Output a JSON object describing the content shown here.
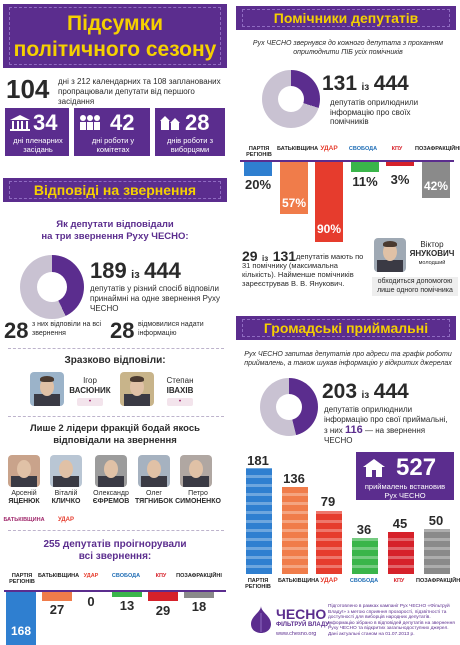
{
  "left": {
    "title_line1": "Підсумки",
    "title_line2": "політичного сезону",
    "days_number": "104",
    "days_text": "дні з 212 календарних та 108 запланованих пропрацювали депутати від першого засідання",
    "stat_plenary_num": "34",
    "stat_plenary_label": "дні пленарних засідань",
    "stat_committee_num": "42",
    "stat_committee_label": "дні роботи у комітетах",
    "stat_voters_num": "28",
    "stat_voters_label": "днів роботи з виборцями",
    "responses_title": "Відповіді на звернення",
    "responses_subtitle_1": "Як депутати відповідали",
    "responses_subtitle_2": "на три звернення Руху ЧЕСНО:",
    "responded_num": "189",
    "responded_of": "із",
    "responded_total": "444",
    "responded_text": "депутатів у різний спосіб відповіли принаймні на одне звернення Руху ЧЕСНО",
    "all_three_num": "28",
    "all_three_text": "з них відповіли на всі звернення",
    "refused_num": "28",
    "refused_text": "відмовилися надати інформацію",
    "exemplary_title": "Зразково відповіли:",
    "exemplary": [
      {
        "first": "Ігор",
        "last": "ВАСЮНИК"
      },
      {
        "first": "Степан",
        "last": "ІВАХІВ"
      }
    ],
    "leaders_title_1": "Лише 2 лідери фракцій бодай якось",
    "leaders_title_2": "відповідали на звернення",
    "leaders": [
      {
        "first": "Арсеній",
        "last": "ЯЦЕНЮК"
      },
      {
        "first": "Віталій",
        "last": "КЛИЧКО"
      },
      {
        "first": "Олександр",
        "last": "ЄФРЕМОВ"
      },
      {
        "first": "Олег",
        "last": "ТЯГНИБОК"
      },
      {
        "first": "Петро",
        "last": "СИМОНЕНКО"
      }
    ],
    "ignored_title_1": "255 депутатів проігнорували",
    "ignored_title_2": "всі звернення:",
    "ignored_values": [
      "168",
      "27",
      "0",
      "13",
      "29",
      "18"
    ]
  },
  "parties": [
    "БАТЬКІВЩИНА",
    "УДАР",
    "СВОБОДА",
    "КПУ",
    "ПОЗАФРАКЦІЙНІ"
  ],
  "party_first": "ПАРТІЯ РЕГІОНІВ",
  "right": {
    "assistants_title": "Помічники депутатів",
    "assistants_intro": "Рух ЧЕСНО звернувся до кожного депутата з проханням оприлюднити ПІБ усіх помічників",
    "assistants_num": "131",
    "assistants_of": "із",
    "assistants_total": "444",
    "assistants_text": "депутатів оприлюднили інформацію про своїх помічників",
    "assistants_pcts": [
      "20%",
      "57%",
      "90%",
      "11%",
      "3%",
      "42%"
    ],
    "max_num": "29",
    "max_of": "із",
    "max_total": "131",
    "max_text": "депутатів мають по 31 помічнику (максимальна кількість). Найменше помічників зареєстрував В. В. Янукович.",
    "yanuk_first": "Віктор",
    "yanuk_last": "ЯНУКОВИЧ",
    "yanuk_note": "молодший",
    "yanuk_text": "обходиться допомогою лише одного помічника",
    "reception_title": "Громадські приймальні",
    "reception_intro": "Рух ЧЕСНО запитав депутатів про адреси та графік роботи приймалень, а також шукав інформацію у відкритих джерелах",
    "reception_num": "203",
    "reception_of": "із",
    "reception_total": "444",
    "reception_text": "депутатів оприлюднили інформацію про свої приймальні,",
    "reception_text2_pre": "з них",
    "reception_text2_num": "116",
    "reception_text2_post": "— на звернення ЧЕСНО",
    "reception_bars": [
      "181",
      "136",
      "79",
      "36",
      "45",
      "50"
    ],
    "offices_num": "527",
    "offices_text": "приймалень встановив Рух ЧЕСНО",
    "footer_logo": "ЧЕСНО",
    "footer_sub": "ФІЛЬТРУЙ ВЛАДУ!",
    "footer_url": "www.chesno.org",
    "footer_text": "Підготовлено в рамках кампанії Рух ЧЕСНО «Фільтруй Владу!» з метою сприяння прозорості, підзвітності та доступності для виборців народних депутатів. Інформацію зібрано в відповідей депутатів на звернення Руху ЧЕСНО та відкритих загальнодоступних джерел. Дані актуальні станом на 01.07.2013 р."
  },
  "colors": {
    "purple": "#5b2d8e",
    "yellow": "#f5d000",
    "regions": "#2f7fd0",
    "batk": "#f07c4a",
    "udar": "#e63c2d",
    "svoboda": "#3ab54a",
    "kpu": "#d6212a",
    "nonfaction": "#8a8a8a"
  }
}
